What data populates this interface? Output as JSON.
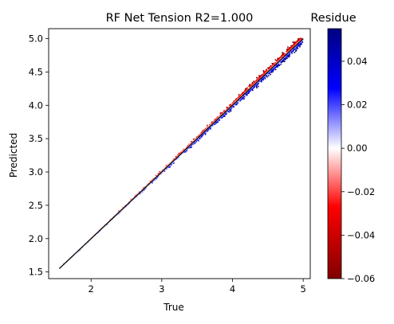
{
  "chart_data": {
    "type": "scatter",
    "title": "RF Net Tension R2=1.000",
    "xlabel": "True",
    "ylabel": "Predicted",
    "xlim": [
      1.4,
      5.1
    ],
    "ylim": [
      1.4,
      5.15
    ],
    "xticks": [
      2,
      3,
      4,
      5
    ],
    "yticks": [
      1.5,
      2.0,
      2.5,
      3.0,
      3.5,
      4.0,
      4.5,
      5.0
    ],
    "x_tick_labels": [
      "2",
      "3",
      "4",
      "5"
    ],
    "y_tick_labels": [
      "1.5",
      "2.0",
      "2.5",
      "3.0",
      "3.5",
      "4.0",
      "4.5",
      "5.0"
    ],
    "identity_line": {
      "from": [
        1.55,
        1.55
      ],
      "to": [
        5.0,
        5.0
      ],
      "color": "#000000"
    },
    "points_description": "Dense scatter of predicted vs true values along the identity line; points above the line (over-prediction) colored red, points below (under-prediction) colored blue; spread grows with True value.",
    "true_range": [
      1.55,
      5.0
    ],
    "colorbar": {
      "label": "Residue",
      "vmin": -0.06,
      "vmax": 0.055,
      "ticks": [
        -0.06,
        -0.04,
        -0.02,
        0.0,
        0.02,
        0.04
      ],
      "tick_labels": [
        "−0.06",
        "−0.04",
        "−0.02",
        "0.00",
        "0.02",
        "0.04"
      ],
      "colors": [
        "#800000",
        "#ff0000",
        "#ffffff",
        "#0000ff",
        "#000080"
      ]
    },
    "grid": false
  }
}
